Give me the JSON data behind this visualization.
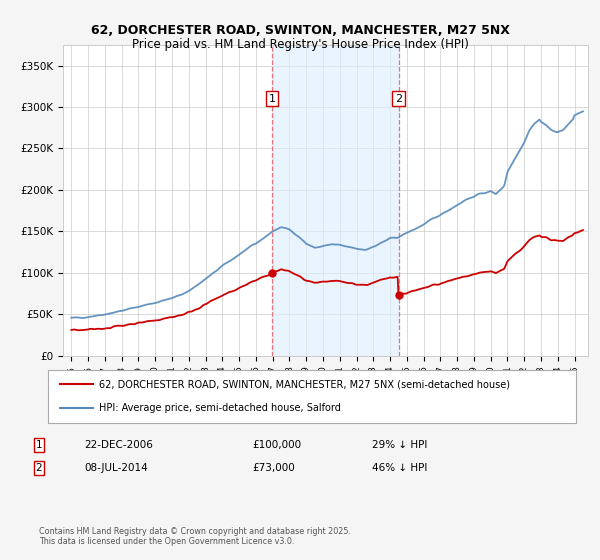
{
  "title": "62, DORCHESTER ROAD, SWINTON, MANCHESTER, M27 5NX",
  "subtitle": "Price paid vs. HM Land Registry's House Price Index (HPI)",
  "legend_line1": "62, DORCHESTER ROAD, SWINTON, MANCHESTER, M27 5NX (semi-detached house)",
  "legend_line2": "HPI: Average price, semi-detached house, Salford",
  "annotation1_date": "22-DEC-2006",
  "annotation1_price": "£100,000",
  "annotation1_hpi": "29% ↓ HPI",
  "annotation2_date": "08-JUL-2014",
  "annotation2_price": "£73,000",
  "annotation2_hpi": "46% ↓ HPI",
  "footnote": "Contains HM Land Registry data © Crown copyright and database right 2025.\nThis data is licensed under the Open Government Licence v3.0.",
  "vline1_x": 2006.97,
  "vline2_x": 2014.52,
  "marker1_x": 2006.97,
  "marker1_y": 100000,
  "marker2_x": 2014.52,
  "marker2_y": 73000,
  "red_color": "#cc0000",
  "blue_color": "#5588bb",
  "shade_color": "#ddeeff",
  "background_color": "#f5f5f5",
  "plot_bg": "#ffffff",
  "ylim": [
    0,
    375000
  ],
  "xlim_start": 1994.5,
  "xlim_end": 2025.8
}
